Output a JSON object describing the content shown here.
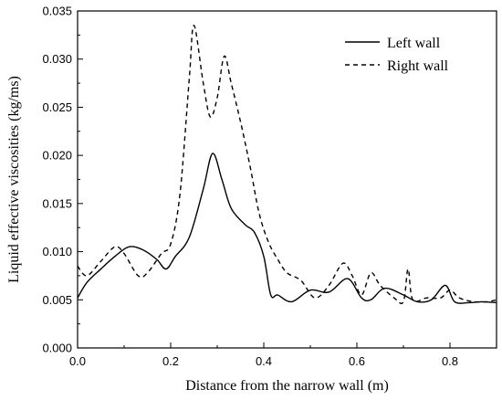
{
  "chart_data": {
    "type": "line",
    "title": "",
    "xlabel": "Distance from the narrow wall (m)",
    "ylabel": "Liquid effective viscosities (kg/ms)",
    "xlim": [
      0.0,
      0.9
    ],
    "ylim": [
      0.0,
      0.035
    ],
    "xticks": [
      "0.0",
      "0.2",
      "0.4",
      "0.6",
      "0.8"
    ],
    "yticks": [
      "0.000",
      "0.005",
      "0.010",
      "0.015",
      "0.020",
      "0.025",
      "0.030",
      "0.035"
    ],
    "grid": false,
    "legend_position": "top-right",
    "series": [
      {
        "name": "Left wall",
        "style": "solid",
        "color": "#000000",
        "points": [
          [
            0.0,
            0.0052
          ],
          [
            0.02,
            0.0068
          ],
          [
            0.05,
            0.0082
          ],
          [
            0.08,
            0.0095
          ],
          [
            0.11,
            0.0105
          ],
          [
            0.14,
            0.0102
          ],
          [
            0.17,
            0.0092
          ],
          [
            0.19,
            0.0082
          ],
          [
            0.21,
            0.0095
          ],
          [
            0.24,
            0.0115
          ],
          [
            0.27,
            0.0165
          ],
          [
            0.29,
            0.0202
          ],
          [
            0.31,
            0.0175
          ],
          [
            0.33,
            0.0145
          ],
          [
            0.36,
            0.0128
          ],
          [
            0.38,
            0.012
          ],
          [
            0.4,
            0.0095
          ],
          [
            0.415,
            0.0055
          ],
          [
            0.43,
            0.0055
          ],
          [
            0.46,
            0.0048
          ],
          [
            0.5,
            0.006
          ],
          [
            0.54,
            0.0058
          ],
          [
            0.58,
            0.0072
          ],
          [
            0.61,
            0.0052
          ],
          [
            0.63,
            0.005
          ],
          [
            0.66,
            0.0062
          ],
          [
            0.7,
            0.0055
          ],
          [
            0.73,
            0.0048
          ],
          [
            0.76,
            0.005
          ],
          [
            0.79,
            0.0065
          ],
          [
            0.81,
            0.0048
          ],
          [
            0.84,
            0.0047
          ],
          [
            0.87,
            0.0048
          ],
          [
            0.9,
            0.0047
          ]
        ]
      },
      {
        "name": "Right wall",
        "style": "dashed",
        "color": "#000000",
        "points": [
          [
            0.0,
            0.0085
          ],
          [
            0.02,
            0.0075
          ],
          [
            0.05,
            0.009
          ],
          [
            0.08,
            0.0105
          ],
          [
            0.1,
            0.0098
          ],
          [
            0.13,
            0.0075
          ],
          [
            0.15,
            0.0078
          ],
          [
            0.18,
            0.0098
          ],
          [
            0.2,
            0.0108
          ],
          [
            0.22,
            0.016
          ],
          [
            0.24,
            0.028
          ],
          [
            0.25,
            0.0335
          ],
          [
            0.27,
            0.0275
          ],
          [
            0.285,
            0.024
          ],
          [
            0.3,
            0.026
          ],
          [
            0.315,
            0.0303
          ],
          [
            0.33,
            0.0275
          ],
          [
            0.35,
            0.0235
          ],
          [
            0.37,
            0.019
          ],
          [
            0.39,
            0.014
          ],
          [
            0.41,
            0.011
          ],
          [
            0.43,
            0.0092
          ],
          [
            0.45,
            0.0078
          ],
          [
            0.48,
            0.007
          ],
          [
            0.51,
            0.0052
          ],
          [
            0.54,
            0.0065
          ],
          [
            0.57,
            0.0088
          ],
          [
            0.59,
            0.0075
          ],
          [
            0.61,
            0.0055
          ],
          [
            0.63,
            0.0078
          ],
          [
            0.65,
            0.0065
          ],
          [
            0.68,
            0.0052
          ],
          [
            0.7,
            0.0048
          ],
          [
            0.71,
            0.0082
          ],
          [
            0.72,
            0.005
          ],
          [
            0.75,
            0.0052
          ],
          [
            0.78,
            0.0052
          ],
          [
            0.8,
            0.006
          ],
          [
            0.82,
            0.0052
          ],
          [
            0.85,
            0.0048
          ],
          [
            0.88,
            0.0048
          ],
          [
            0.9,
            0.005
          ]
        ]
      }
    ]
  }
}
